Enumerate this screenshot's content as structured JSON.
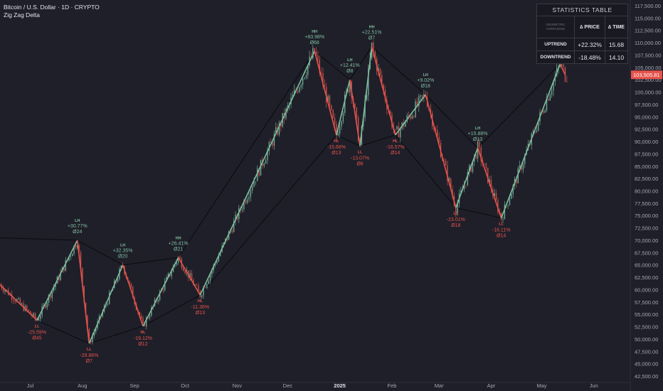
{
  "header": {
    "symbol": "Bitcoin / U.S. Dollar · 1D · CRYPTO",
    "indicator": "Zig Zag Delta"
  },
  "stats_table": {
    "title": "STATISTICS TABLE",
    "corner_label": "GEOMETRIC AVERAGING",
    "col_price": "∆ PRICE",
    "col_time": "∆ TIME",
    "uptrend_label": "UPTREND",
    "uptrend_price": "+22.32%",
    "uptrend_time": "15.68",
    "downtrend_label": "DOWNTREND",
    "downtrend_price": "-18.48%",
    "downtrend_time": "14.10"
  },
  "colors": {
    "background": "#1f1f29",
    "up": "#7fbf9f",
    "down": "#e5534b",
    "candle_up": "#6ea893",
    "candle_down": "#c9504b",
    "channel": "#0a0a0f",
    "price_tag": "#e5534b"
  },
  "chart_data": {
    "type": "candlestick",
    "title": "Bitcoin / U.S. Dollar · 1D · CRYPTO",
    "ylim": [
      42000,
      118000
    ],
    "xlim": [
      "2024-06-13",
      "2025-06-21"
    ],
    "y_ticks": [
      "42,500.00",
      "45,000.00",
      "47,500.00",
      "50,000.00",
      "52,500.00",
      "55,000.00",
      "57,500.00",
      "60,000.00",
      "62,500.00",
      "65,000.00",
      "67,500.00",
      "70,000.00",
      "72,500.00",
      "75,000.00",
      "77,500.00",
      "80,000.00",
      "82,500.00",
      "85,000.00",
      "87,500.00",
      "90,000.00",
      "92,500.00",
      "95,000.00",
      "97,500.00",
      "100,000.00",
      "102,500.00",
      "105,000.00",
      "107,500.00",
      "110,000.00",
      "112,500.00",
      "115,000.00",
      "117,500.00"
    ],
    "y_tick_values": [
      42500,
      45000,
      47500,
      50000,
      52500,
      55000,
      57500,
      60000,
      62500,
      65000,
      67500,
      70000,
      72500,
      75000,
      77500,
      80000,
      82500,
      85000,
      87500,
      90000,
      92500,
      95000,
      97500,
      100000,
      102500,
      105000,
      107500,
      110000,
      112500,
      115000,
      117500
    ],
    "x_ticks": [
      {
        "label": "Jul",
        "date": "2024-07-01"
      },
      {
        "label": "Aug",
        "date": "2024-08-01"
      },
      {
        "label": "Sep",
        "date": "2024-09-01"
      },
      {
        "label": "Oct",
        "date": "2024-10-01"
      },
      {
        "label": "Nov",
        "date": "2024-11-01"
      },
      {
        "label": "Dec",
        "date": "2024-12-01"
      },
      {
        "label": "2025",
        "date": "2025-01-01",
        "bold": true
      },
      {
        "label": "Feb",
        "date": "2025-02-01"
      },
      {
        "label": "Mar",
        "date": "2025-03-01"
      },
      {
        "label": "Apr",
        "date": "2025-04-01"
      },
      {
        "label": "May",
        "date": "2025-05-01"
      },
      {
        "label": "Jun",
        "date": "2025-06-01"
      }
    ],
    "last_price": "103,505.81",
    "last_value": 103505.81,
    "zigzag": [
      {
        "date": "2024-06-13",
        "price": 61000
      },
      {
        "date": "2024-07-05",
        "price": 53800,
        "label": "LL",
        "pct": "-25.59%",
        "bars": "45",
        "dir": "down"
      },
      {
        "date": "2024-07-29",
        "price": 70000,
        "label": "LH",
        "pct": "+30.77%",
        "bars": "24",
        "dir": "up"
      },
      {
        "date": "2024-08-05",
        "price": 49100,
        "label": "LL",
        "pct": "-29.86%",
        "bars": "7",
        "dir": "down"
      },
      {
        "date": "2024-08-25",
        "price": 65000,
        "label": "LH",
        "pct": "+32.35%",
        "bars": "20",
        "dir": "up"
      },
      {
        "date": "2024-09-06",
        "price": 52600,
        "label": "HL",
        "pct": "-19.12%",
        "bars": "12",
        "dir": "down"
      },
      {
        "date": "2024-09-27",
        "price": 66500,
        "label": "HH",
        "pct": "+26.41%",
        "bars": "21",
        "dir": "up"
      },
      {
        "date": "2024-10-10",
        "price": 58900,
        "label": "HL",
        "pct": "-11.36%",
        "bars": "13",
        "dir": "down"
      },
      {
        "date": "2024-12-17",
        "price": 108300,
        "label": "HH",
        "pct": "+83.98%",
        "bars": "68",
        "dir": "up"
      },
      {
        "date": "2024-12-30",
        "price": 91300,
        "label": "HL",
        "pct": "-15.68%",
        "bars": "13",
        "dir": "down"
      },
      {
        "date": "2025-01-07",
        "price": 102500,
        "label": "LH",
        "pct": "+12.41%",
        "bars": "8",
        "dir": "up"
      },
      {
        "date": "2025-01-13",
        "price": 89100,
        "label": "LL",
        "pct": "-13.07%",
        "bars": "6",
        "dir": "down"
      },
      {
        "date": "2025-01-20",
        "price": 109200,
        "label": "HH",
        "pct": "+22.51%",
        "bars": "7",
        "dir": "up"
      },
      {
        "date": "2025-02-03",
        "price": 91300,
        "label": "HL",
        "pct": "-16.57%",
        "bars": "14",
        "dir": "down"
      },
      {
        "date": "2025-02-21",
        "price": 99500,
        "label": "LH",
        "pct": "+9.02%",
        "bars": "18",
        "dir": "up"
      },
      {
        "date": "2025-03-11",
        "price": 76600,
        "label": "LL",
        "pct": "-23.01%",
        "bars": "18",
        "dir": "down"
      },
      {
        "date": "2025-03-24",
        "price": 88700,
        "label": "LH",
        "pct": "+15.88%",
        "bars": "13",
        "dir": "up"
      },
      {
        "date": "2025-04-07",
        "price": 74500,
        "label": "LL",
        "pct": "-16.11%",
        "bars": "14",
        "dir": "down"
      },
      {
        "date": "2025-05-12",
        "price": 105700,
        "dir": "up"
      },
      {
        "date": "2025-05-15",
        "price": 103500
      }
    ],
    "channel_top": [
      {
        "date": "2024-06-13",
        "price": 70500
      },
      {
        "date": "2024-07-29",
        "price": 70000
      },
      {
        "date": "2024-08-25",
        "price": 65000
      },
      {
        "date": "2024-09-27",
        "price": 66500
      },
      {
        "date": "2024-12-17",
        "price": 108300
      },
      {
        "date": "2025-01-07",
        "price": 102500
      },
      {
        "date": "2025-01-20",
        "price": 109200
      },
      {
        "date": "2025-02-21",
        "price": 99500
      },
      {
        "date": "2025-03-24",
        "price": 88700
      },
      {
        "date": "2025-05-12",
        "price": 105700
      }
    ],
    "channel_bottom": [
      {
        "date": "2024-07-05",
        "price": 53800
      },
      {
        "date": "2024-08-05",
        "price": 49100
      },
      {
        "date": "2024-09-06",
        "price": 52600
      },
      {
        "date": "2024-10-10",
        "price": 58900
      },
      {
        "date": "2024-12-30",
        "price": 91300
      },
      {
        "date": "2025-01-13",
        "price": 89100
      },
      {
        "date": "2025-02-03",
        "price": 91300
      },
      {
        "date": "2025-03-11",
        "price": 76600
      },
      {
        "date": "2025-04-07",
        "price": 74500
      },
      {
        "date": "2025-05-12",
        "price": 105700
      }
    ],
    "series_start": "2024-06-13",
    "series_end": "2025-05-16"
  }
}
